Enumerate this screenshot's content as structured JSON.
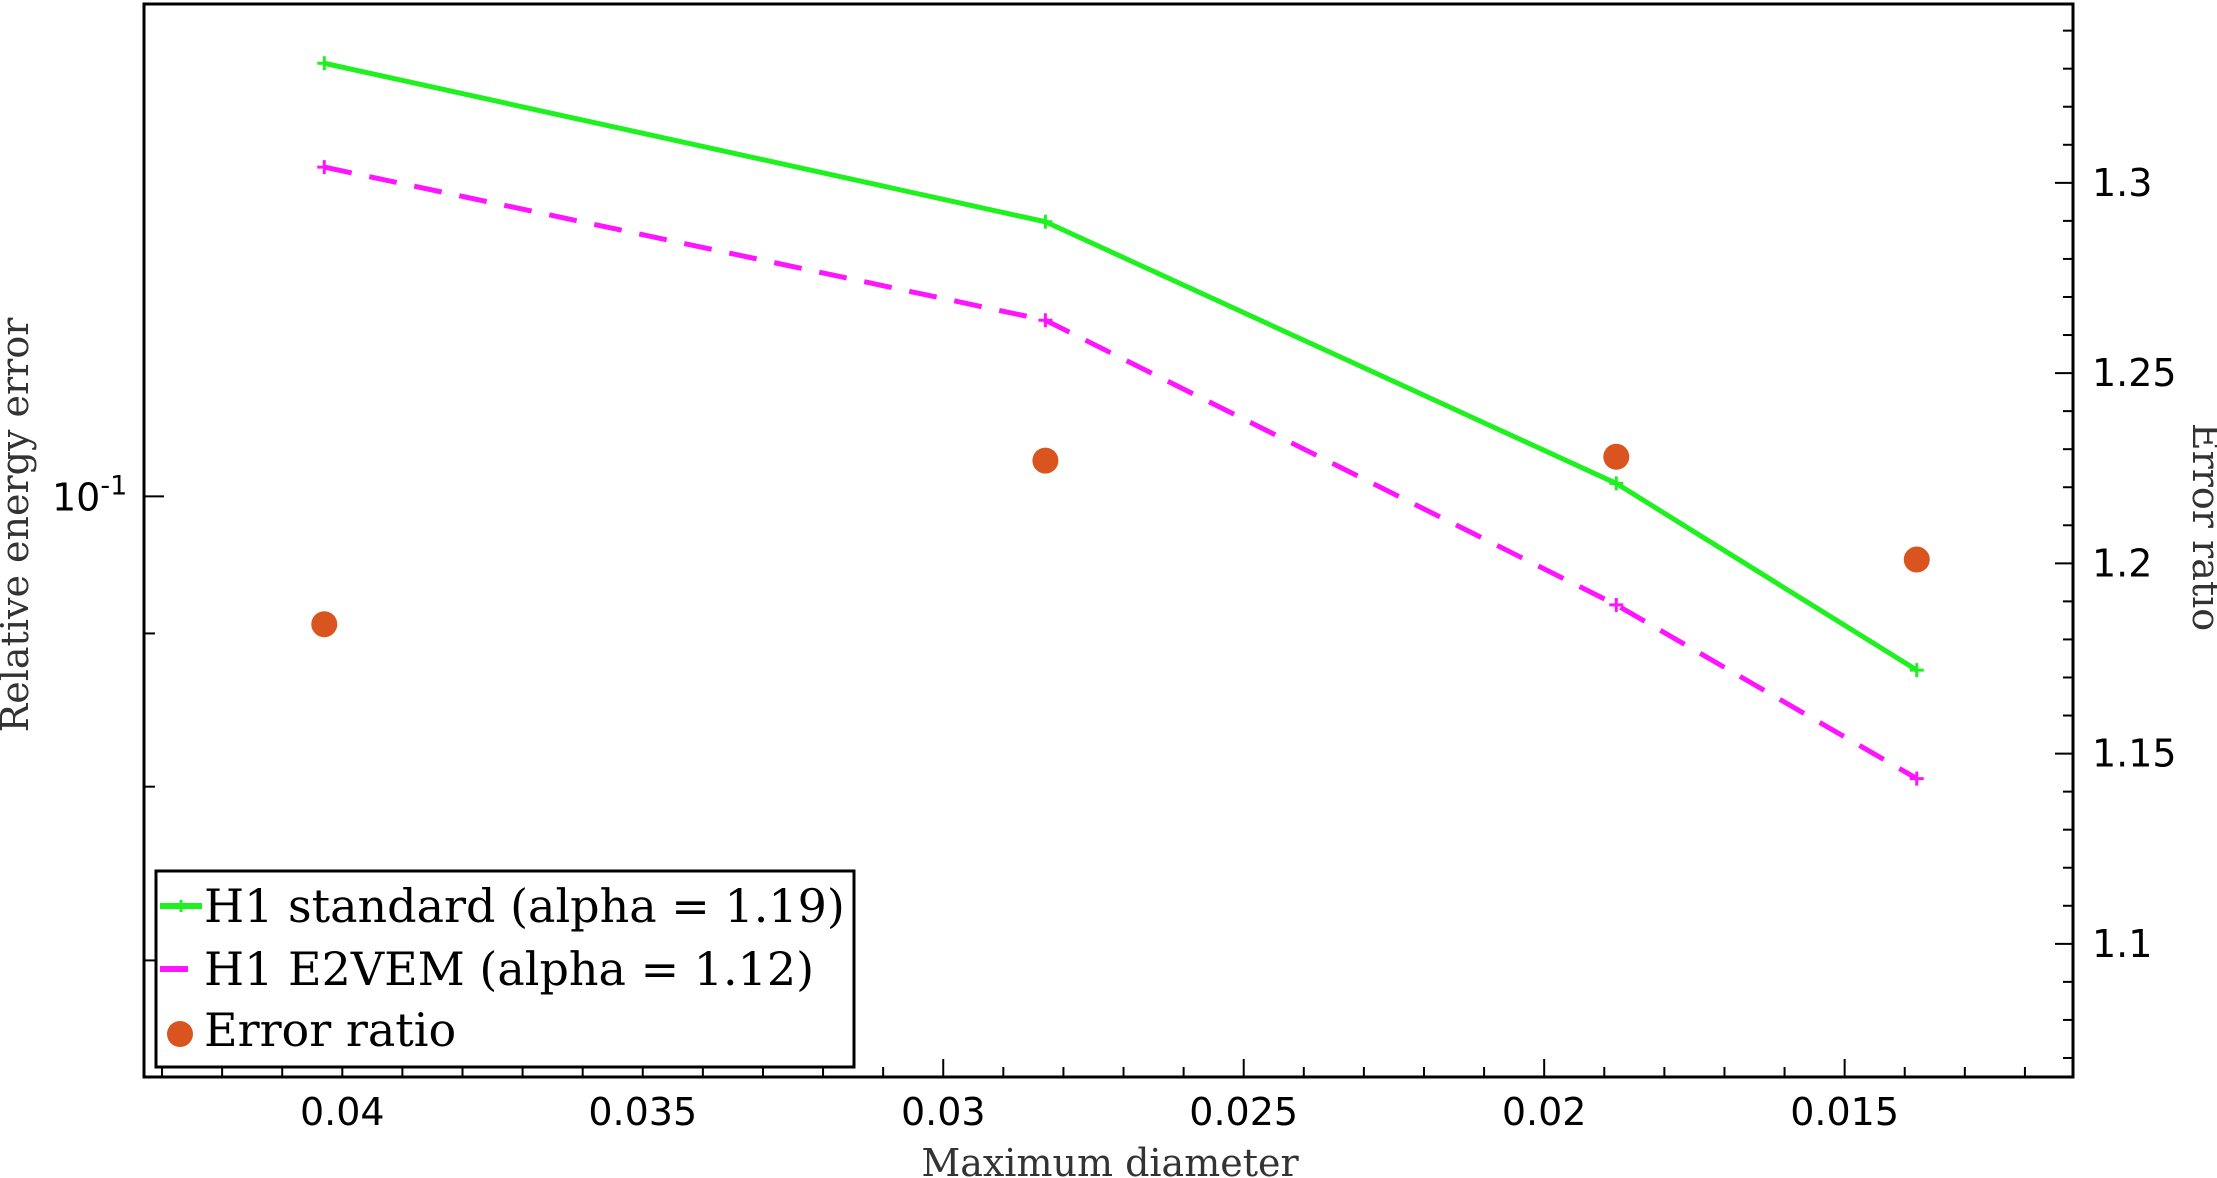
{
  "chart_data": {
    "type": "line",
    "x": [
      0.0403,
      0.0283,
      0.0188,
      0.0138
    ],
    "xlim": [
      0.0433,
      0.0112
    ],
    "xticks": [
      0.04,
      0.035,
      0.03,
      0.025,
      0.02,
      0.015
    ],
    "xtick_labels": [
      "0.04",
      "0.035",
      "0.03",
      "0.025",
      "0.02",
      "0.015"
    ],
    "xlabel": "Maximum diameter",
    "ylabel_left": "Relative energy error",
    "ylabel_right": "Error ratio",
    "left_axis": {
      "scale": "log",
      "ylim": [
        0.064,
        0.146
      ],
      "ytick_labels": [
        {
          "base": "10",
          "exp": "-1",
          "value": 0.1
        }
      ]
    },
    "right_axis": {
      "scale": "linear",
      "ylim": [
        1.065,
        1.347
      ],
      "yticks": [
        1.1,
        1.15,
        1.2,
        1.25,
        1.3
      ],
      "ytick_labels": [
        "1.1",
        "1.15",
        "1.2",
        "1.25",
        "1.3"
      ]
    },
    "series": [
      {
        "name": "H1 standard (alpha = 1.19)",
        "axis": "left",
        "style": "solid",
        "marker": "plus",
        "color": "#1ff01f",
        "values": [
          0.1395,
          0.1235,
          0.101,
          0.0875
        ]
      },
      {
        "name": "H1 E2VEM (alpha = 1.12)",
        "axis": "left",
        "style": "dashed",
        "marker": "plus",
        "color": "#ff14ff",
        "values": [
          0.1288,
          0.1145,
          0.092,
          0.0805
        ]
      },
      {
        "name": "Error ratio",
        "axis": "right",
        "style": "points",
        "marker": "circle",
        "color": "#d9541e",
        "values": [
          1.184,
          1.227,
          1.228,
          1.201
        ]
      }
    ],
    "legend": {
      "position": "bottom-left"
    },
    "grid": false
  }
}
